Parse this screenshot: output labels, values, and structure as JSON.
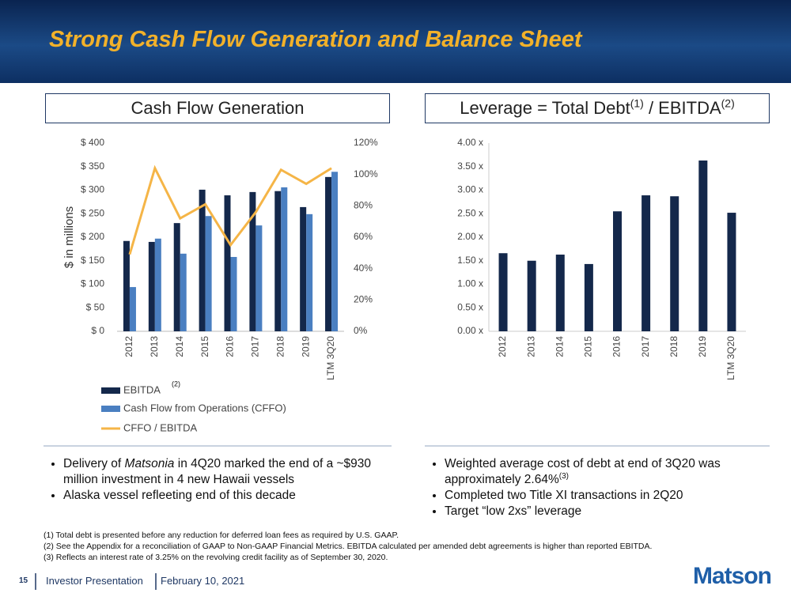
{
  "slide": {
    "title": "Strong Cash Flow Generation and Balance Sheet",
    "left_bullets": [
      [
        "Delivery of ",
        "Matsonia",
        " in 4Q20 marked the end of a ~$930 million investment in 4 new Hawaii vessels"
      ],
      [
        "Alaska vessel refleeting end of this decade"
      ]
    ],
    "right_bullets": [
      [
        "Weighted average cost of debt at end of 3Q20 was approximately 2.64%",
        "(3)"
      ],
      [
        "Completed two Title XI transactions in 2Q20"
      ],
      [
        "Target “low 2xs” leverage"
      ]
    ],
    "footnotes": [
      "(1) Total debt is presented before any reduction for deferred loan fees as required by U.S. GAAP.",
      "(2) See the Appendix for a reconciliation of GAAP to Non-GAAP Financial Metrics.  EBITDA calculated per amended debt agreements is higher than reported EBITDA.",
      "(3) Reflects an interest rate of 3.25% on the revolving credit facility as of September 30, 2020."
    ],
    "footer": {
      "page": "15",
      "name": "Investor Presentation",
      "date": "February 10, 2021",
      "logo": "Matson"
    }
  },
  "chart_data": [
    {
      "type": "bar_line",
      "title": "Cash Flow Generation",
      "y_label": "$ in millions",
      "categories": [
        "2012",
        "2013",
        "2014",
        "2015",
        "2016",
        "2017",
        "2018",
        "2019",
        "LTM 3Q20"
      ],
      "series": [
        {
          "name": "EBITDA",
          "note": "(2)",
          "type": "bar",
          "color": "#14284b",
          "values": [
            192,
            190,
            230,
            301,
            289,
            296,
            298,
            264,
            328
          ]
        },
        {
          "name": "Cash Flow from Operations (CFFO)",
          "type": "bar",
          "color": "#4a7fc1",
          "values": [
            94,
            197,
            165,
            245,
            158,
            225,
            306,
            249,
            339
          ]
        },
        {
          "name": "CFFO / EBITDA",
          "type": "line",
          "axis": "y2",
          "color": "#f5b547",
          "values": [
            49,
            104,
            72,
            81,
            55,
            76,
            103,
            94,
            104
          ]
        }
      ],
      "ylim": [
        0,
        400
      ],
      "yticks": [
        {
          "value": 0,
          "label": "$ 0"
        },
        {
          "value": 50,
          "label": "$ 50"
        },
        {
          "value": 100,
          "label": "$ 100"
        },
        {
          "value": 150,
          "label": "$ 150"
        },
        {
          "value": 200,
          "label": "$ 200"
        },
        {
          "value": 250,
          "label": "$ 250"
        },
        {
          "value": 300,
          "label": "$ 300"
        },
        {
          "value": 350,
          "label": "$ 350"
        },
        {
          "value": 400,
          "label": "$ 400"
        }
      ],
      "y2lim": [
        0,
        120
      ],
      "y2ticks": [
        {
          "value": 0,
          "label": "0%"
        },
        {
          "value": 20,
          "label": "20%"
        },
        {
          "value": 40,
          "label": "40%"
        },
        {
          "value": 60,
          "label": "60%"
        },
        {
          "value": 80,
          "label": "80%"
        },
        {
          "value": 100,
          "label": "100%"
        },
        {
          "value": 120,
          "label": "120%"
        }
      ],
      "legend": "bottom"
    },
    {
      "type": "bar",
      "title_parts": [
        "Leverage = Total Debt",
        "(1)",
        " / EBITDA",
        "(2)"
      ],
      "categories": [
        "2012",
        "2013",
        "2014",
        "2015",
        "2016",
        "2017",
        "2018",
        "2019",
        "LTM 3Q20"
      ],
      "values": [
        1.66,
        1.5,
        1.63,
        1.43,
        2.55,
        2.89,
        2.87,
        3.63,
        2.52
      ],
      "color": "#14284b",
      "ylim": [
        0,
        4
      ],
      "yticks": [
        {
          "value": 0,
          "label": "0.00 x"
        },
        {
          "value": 0.5,
          "label": "0.50 x"
        },
        {
          "value": 1,
          "label": "1.00 x"
        },
        {
          "value": 1.5,
          "label": "1.50 x"
        },
        {
          "value": 2,
          "label": "2.00 x"
        },
        {
          "value": 2.5,
          "label": "2.50 x"
        },
        {
          "value": 3,
          "label": "3.00 x"
        },
        {
          "value": 3.5,
          "label": "3.50 x"
        },
        {
          "value": 4,
          "label": "4.00 x"
        }
      ]
    }
  ]
}
